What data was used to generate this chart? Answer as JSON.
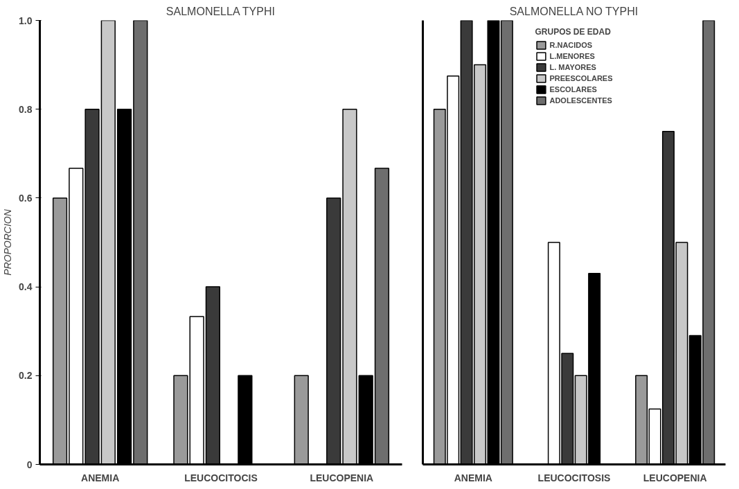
{
  "chart_data": [
    {
      "type": "bar",
      "title": "SALMONELLA TYPHI",
      "ylabel": "PROPORCION",
      "categories": [
        "ANEMIA",
        "LEUCOCITOCIS",
        "LEUCOPENIA"
      ],
      "ylim": [
        0,
        1
      ],
      "yticks": [
        0,
        0.2,
        0.4,
        0.6,
        0.8,
        {
          "value": 1,
          "label": "1.0"
        }
      ],
      "grid": false,
      "series": [
        {
          "color": "#9a9a9a",
          "values": [
            0.6,
            0.2,
            0.2
          ]
        },
        {
          "color": "#ffffff",
          "values": [
            0.667,
            0.333,
            0
          ]
        },
        {
          "color": "#3a3a3a",
          "values": [
            0.8,
            0.4,
            0.6
          ]
        },
        {
          "color": "#c8c8c8",
          "values": [
            1.0,
            0,
            0.8
          ]
        },
        {
          "color": "#000000",
          "values": [
            0.8,
            0.2,
            0.2
          ]
        },
        {
          "color": "#6e6e6e",
          "values": [
            1.0,
            0,
            0.667
          ]
        }
      ]
    },
    {
      "type": "bar",
      "title": "SALMONELLA NO TYPHI",
      "legend_title": "GRUPOS DE EDAD",
      "categories": [
        "ANEMIA",
        "LEUCOCITOSIS",
        "LEUCOPENIA"
      ],
      "ylim": [
        0,
        1
      ],
      "tick_labels": "x",
      "grid": false,
      "legend": "top",
      "series": [
        {
          "name": "R.NACIDOS",
          "color": "#9a9a9a",
          "values": [
            0.8,
            0,
            0.2
          ]
        },
        {
          "name": "L.MENORES",
          "color": "#ffffff",
          "values": [
            0.875,
            0.5,
            0.125
          ]
        },
        {
          "name": "L. MAYORES",
          "color": "#3a3a3a",
          "values": [
            1.0,
            0.25,
            0.75
          ]
        },
        {
          "name": "PREESCOLARES",
          "color": "#c8c8c8",
          "values": [
            0.9,
            0.2,
            0.5
          ]
        },
        {
          "name": "ESCOLARES",
          "color": "#000000",
          "values": [
            1.0,
            0.43,
            0.29
          ]
        },
        {
          "name": "ADOLESCENTES",
          "color": "#6e6e6e",
          "values": [
            1.0,
            0,
            1.0
          ]
        }
      ]
    }
  ]
}
